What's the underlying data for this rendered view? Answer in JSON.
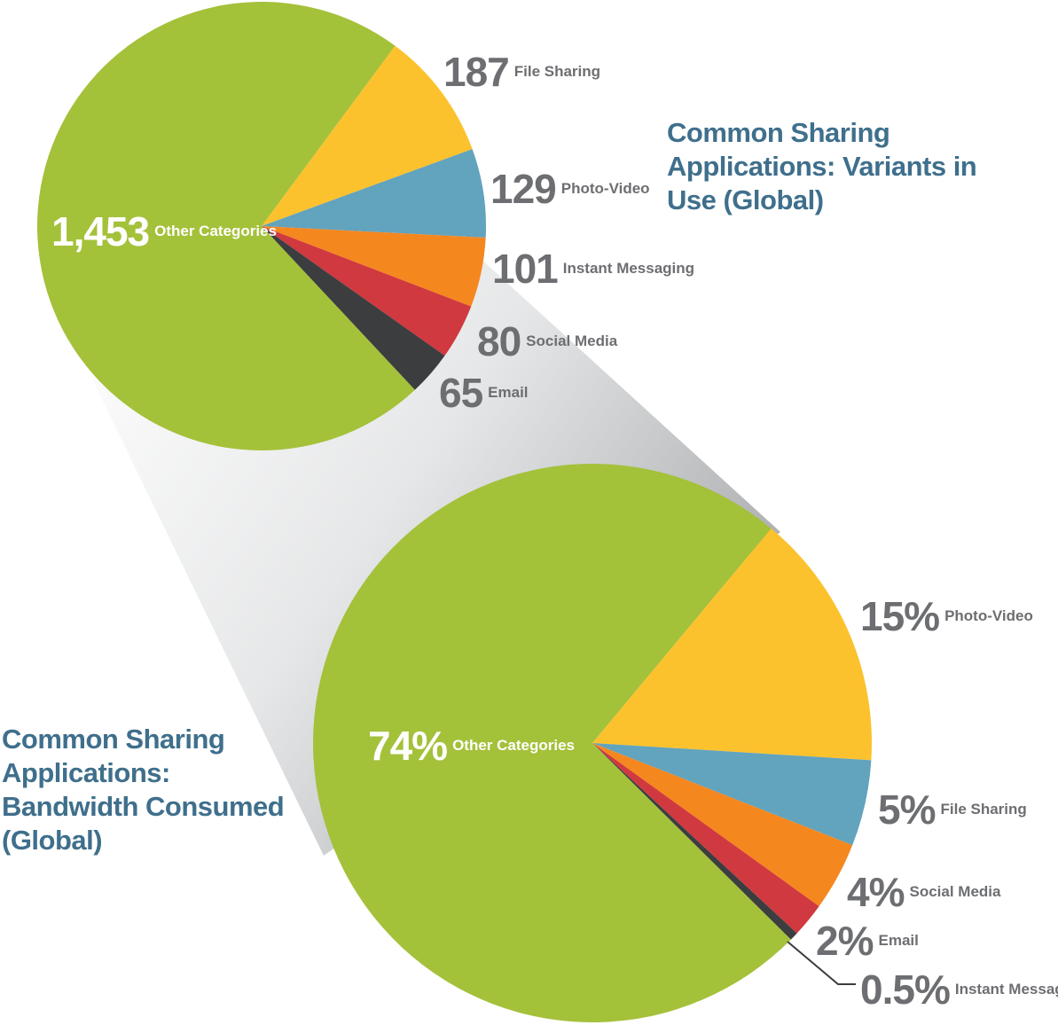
{
  "chart_data": [
    {
      "type": "pie",
      "title": "Common Sharing Applications: Variants in Use (Global)",
      "categories": [
        "File Sharing",
        "Photo-Video",
        "Instant Messaging",
        "Social Media",
        "Email",
        "Other Categories"
      ],
      "values": [
        187,
        129,
        101,
        80,
        65,
        1453
      ],
      "value_labels": [
        "187",
        "129",
        "101",
        "80",
        "65",
        "1,453"
      ],
      "colors": [
        "#fcc22d",
        "#62a3bd",
        "#f5871f",
        "#d0393f",
        "#3c3d3f",
        "#a4c13a"
      ]
    },
    {
      "type": "pie",
      "title": "Common Sharing Applications: Bandwidth Consumed (Global)",
      "categories": [
        "Photo-Video",
        "File Sharing",
        "Social Media",
        "Email",
        "Instant Messaging",
        "Other Categories"
      ],
      "values": [
        15,
        5,
        4,
        2,
        0.5,
        74
      ],
      "value_labels": [
        "15%",
        "5%",
        "4%",
        "2%",
        "0.5%",
        "74%"
      ],
      "colors": [
        "#fcc22d",
        "#62a3bd",
        "#f5871f",
        "#d0393f",
        "#3c3d3f",
        "#a4c13a"
      ]
    }
  ]
}
